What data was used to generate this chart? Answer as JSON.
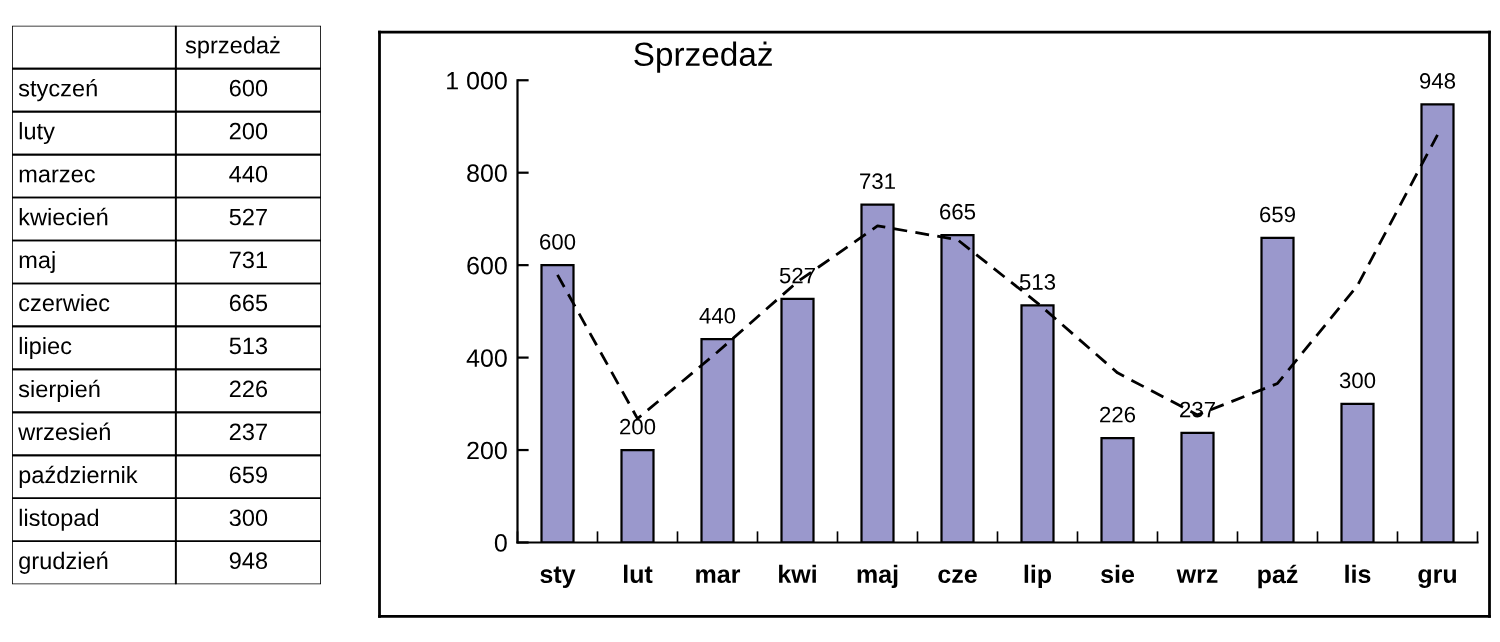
{
  "chart_data": [
    {
      "type": "other",
      "title": "sprzedaż",
      "data_labels": true,
      "categories": [
        "styczeń",
        "luty",
        "marzec",
        "kwiecień",
        "maj",
        "czerwiec",
        "lipiec",
        "sierpień",
        "wrzesień",
        "październik",
        "listopad",
        "grudzień"
      ],
      "values": [
        600,
        200,
        440,
        527,
        731,
        665,
        513,
        226,
        237,
        659,
        300,
        948
      ]
    },
    {
      "type": "bar",
      "title": "Sprzedaż",
      "categories": [
        "sty",
        "lut",
        "mar",
        "kwi",
        "maj",
        "cze",
        "lip",
        "sie",
        "wrz",
        "paź",
        "lis",
        "gru"
      ],
      "ylim": [
        0,
        1000
      ],
      "yticks": [
        0,
        200,
        400,
        600,
        800,
        {
          "value": 1000,
          "label": "1 000"
        }
      ],
      "grid": false,
      "series": [
        {
          "color": "#9a98cc",
          "values": [
            600,
            200,
            440,
            527,
            731,
            665,
            513,
            226,
            237,
            659,
            300,
            948
          ],
          "value_labels": [
            "600",
            "200",
            "440",
            "527",
            "731",
            "665",
            "513",
            "226",
            "237",
            "659",
            "300",
            "948"
          ]
        },
        {
          "type": "line",
          "color": "#000000",
          "line_style": "dashed",
          "x": [
            "sty",
            "lut",
            "mar",
            "kwi",
            "maj",
            "cze",
            "lip",
            "sie",
            "wrz",
            "paź",
            "lis",
            "gru"
          ],
          "values": [
            579,
            268,
            412,
            564,
            685,
            655,
            518,
            367,
            276,
            344,
            556,
            882
          ]
        }
      ]
    }
  ]
}
